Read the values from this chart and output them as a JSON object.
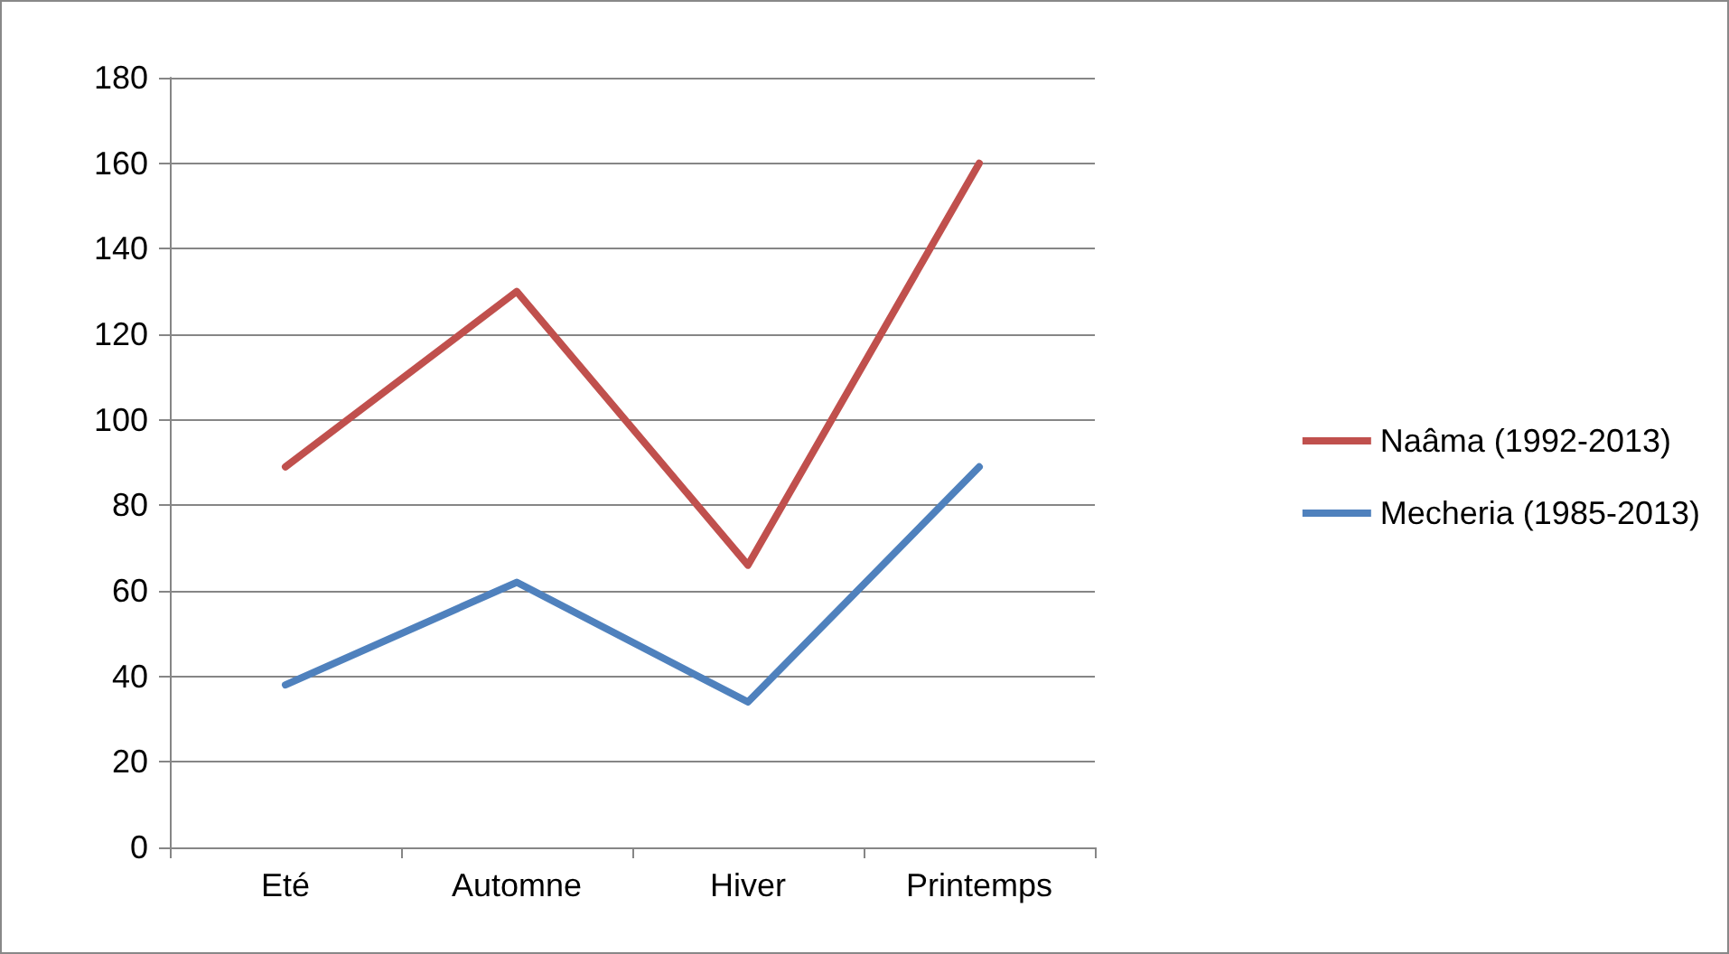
{
  "chart_data": {
    "type": "line",
    "categories": [
      "Eté",
      "Automne",
      "Hiver",
      "Printemps"
    ],
    "series": [
      {
        "name": "Naâma (1992-2013)",
        "color": "#c0504d",
        "values": [
          89,
          130,
          66,
          160
        ]
      },
      {
        "name": "Mecheria (1985-2013)",
        "color": "#4f81bd",
        "values": [
          38,
          62,
          34,
          89
        ]
      }
    ],
    "ylim": [
      0,
      180
    ],
    "yticks": [
      0,
      20,
      40,
      60,
      80,
      100,
      120,
      140,
      160,
      180
    ],
    "grid": "y",
    "legend": "right",
    "marker": "none",
    "line_style": "solid"
  }
}
